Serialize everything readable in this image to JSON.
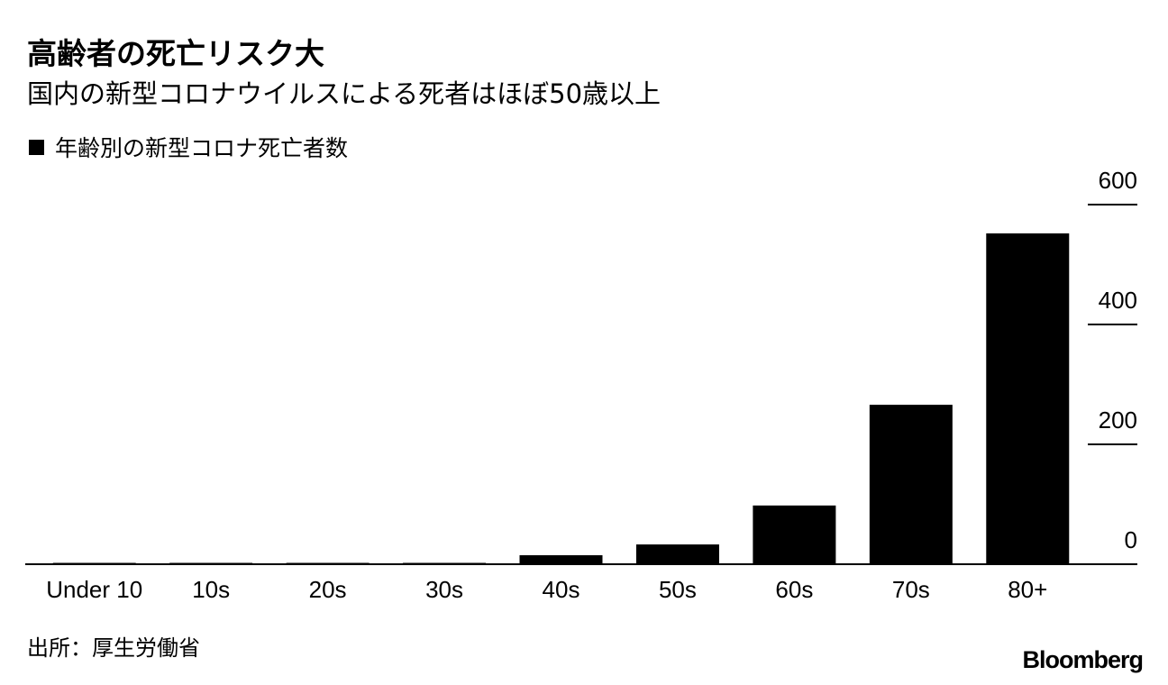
{
  "title": "高齢者の死亡リスク大",
  "subtitle": "国内の新型コロナウイルスによる死者はほぼ50歳以上",
  "legend": {
    "label": "年齢別の新型コロナ死亡者数",
    "swatch_color": "#000000"
  },
  "source": "出所：厚生労働省",
  "logo": "Bloomberg",
  "chart_data": {
    "type": "bar",
    "categories": [
      "Under 10",
      "10s",
      "20s",
      "30s",
      "40s",
      "50s",
      "60s",
      "70s",
      "80+"
    ],
    "values": [
      0,
      0,
      0,
      2,
      15,
      33,
      98,
      266,
      552
    ],
    "ylim": [
      0,
      600
    ],
    "yticks": [
      0,
      200,
      400,
      600
    ],
    "ytick_labels": [
      "0",
      "200",
      "400",
      "600"
    ],
    "y_axis_side": "right",
    "grid": false,
    "bar_color": "#000000",
    "title": "",
    "xlabel": "",
    "ylabel": ""
  }
}
